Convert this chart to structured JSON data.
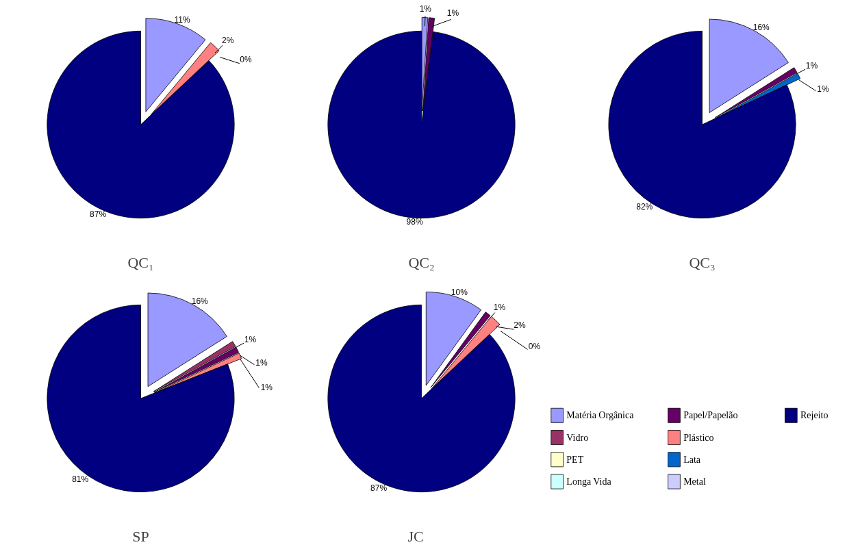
{
  "chart_data": [
    {
      "type": "pie",
      "title": "QC₁",
      "categories": [
        null,
        null,
        null,
        null,
        null,
        null,
        null,
        null,
        null
      ],
      "values": [
        11,
        0,
        0,
        0,
        0,
        2,
        0,
        0,
        87
      ],
      "value_labels": [
        "11%",
        null,
        null,
        null,
        null,
        "2%",
        null,
        "0%",
        "87%"
      ],
      "colors": [
        "#9999ff",
        "#993366",
        "#ffffcc",
        "#ccffff",
        "#660066",
        "#ff8080",
        "#0066cc",
        "#ccccff",
        "#000080"
      ]
    },
    {
      "type": "pie",
      "title": "QC₂",
      "categories": [
        null,
        null,
        null,
        null,
        null,
        null,
        null,
        null,
        null
      ],
      "values": [
        1,
        0,
        0,
        0,
        1,
        0,
        0,
        0,
        98
      ],
      "value_labels": [
        "1%",
        null,
        null,
        null,
        "1%",
        null,
        null,
        null,
        "98%"
      ],
      "colors": [
        "#9999ff",
        "#993366",
        "#ffffcc",
        "#ccffff",
        "#660066",
        "#ff8080",
        "#0066cc",
        "#ccccff",
        "#000080"
      ]
    },
    {
      "type": "pie",
      "title": "QC₃",
      "categories": [
        null,
        null,
        null,
        null,
        null,
        null,
        null,
        null,
        null
      ],
      "values": [
        16,
        0,
        0,
        0,
        1,
        0,
        1,
        0,
        82
      ],
      "value_labels": [
        "16%",
        null,
        null,
        null,
        "1%",
        null,
        "1%",
        null,
        "82%"
      ],
      "colors": [
        "#9999ff",
        "#993366",
        "#ffffcc",
        "#ccffff",
        "#660066",
        "#ff8080",
        "#0066cc",
        "#ccccff",
        "#000080"
      ]
    },
    {
      "type": "pie",
      "title": "SP",
      "categories": [
        null,
        null,
        null,
        null,
        null,
        null,
        null,
        null,
        null
      ],
      "values": [
        16,
        1,
        0,
        0,
        1,
        1,
        0,
        0,
        81
      ],
      "value_labels": [
        "16%",
        "1%",
        null,
        null,
        "1%",
        "1%",
        null,
        null,
        "81%"
      ],
      "colors": [
        "#9999ff",
        "#993366",
        "#ffffcc",
        "#ccffff",
        "#660066",
        "#ff8080",
        "#0066cc",
        "#ccccff",
        "#000080"
      ]
    },
    {
      "type": "pie",
      "title": "JC",
      "categories": [
        "Matéria Orgânica",
        "Vidro",
        "PET",
        "Longa Vida",
        "Papel/Papelão",
        "Plástico",
        "Lata",
        "Metal",
        "Rejeito"
      ],
      "values": [
        10,
        0,
        0,
        0,
        1,
        2,
        0,
        0,
        87
      ],
      "value_labels": [
        "10%",
        null,
        null,
        null,
        "1%",
        "2%",
        null,
        "0%",
        "87%"
      ],
      "colors": [
        "#9999ff",
        "#993366",
        "#ffffcc",
        "#ccffff",
        "#660066",
        "#ff8080",
        "#0066cc",
        "#ccccff",
        "#000080"
      ],
      "legend": "right"
    }
  ]
}
